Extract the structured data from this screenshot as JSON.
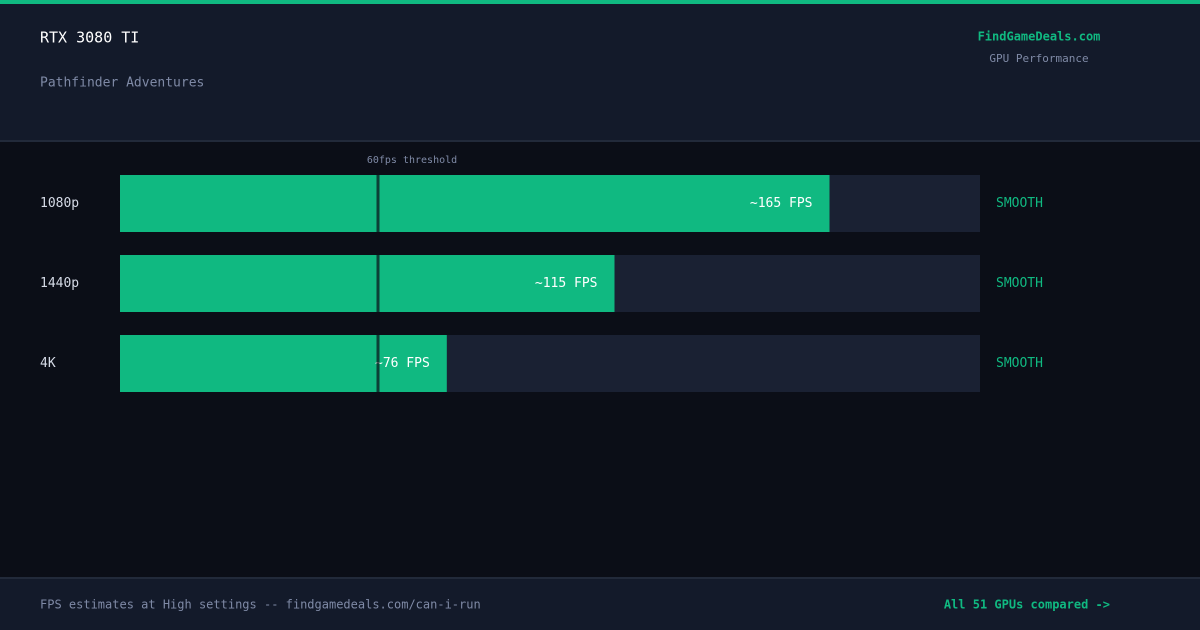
{
  "header": {
    "title": "RTX 3080 TI",
    "subtitle": "Pathfinder Adventures",
    "brand": "FindGameDeals.com",
    "brand_sub": "GPU Performance"
  },
  "chart_data": {
    "type": "bar",
    "orientation": "horizontal",
    "categories": [
      "1080p",
      "1440p",
      "4K"
    ],
    "values": [
      165,
      115,
      76
    ],
    "value_labels": [
      "~165 FPS",
      "~115 FPS",
      "~76 FPS"
    ],
    "statuses": [
      "SMOOTH",
      "SMOOTH",
      "SMOOTH"
    ],
    "color": "#10b981",
    "xlim": [
      0,
      200
    ],
    "threshold": {
      "value": 60,
      "label": "60fps threshold"
    }
  },
  "footer": {
    "note": "FPS estimates at High settings -- findgamedeals.com/can-i-run",
    "link": "All 51 GPUs compared ->"
  }
}
